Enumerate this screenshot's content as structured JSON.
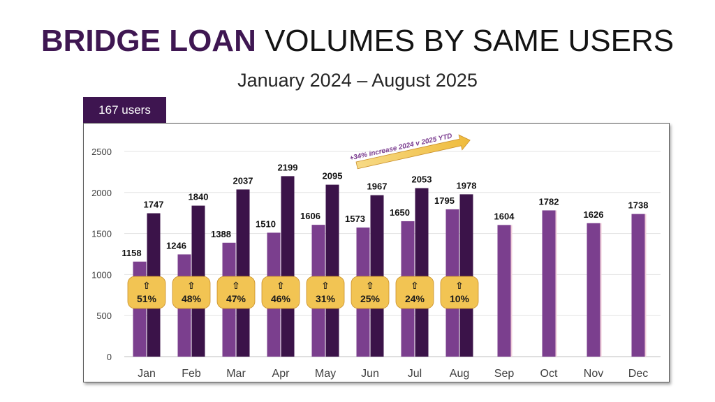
{
  "header": {
    "title_bold": "BRIDGE LOAN",
    "title_rest": " VOLUMES BY SAME USERS",
    "subtitle": "January 2024 – August 2025"
  },
  "badge": {
    "users": "167 users"
  },
  "chart_data": {
    "type": "bar",
    "categories": [
      "Jan",
      "Feb",
      "Mar",
      "Apr",
      "May",
      "Jun",
      "Jul",
      "Aug",
      "Sep",
      "Oct",
      "Nov",
      "Dec"
    ],
    "series": [
      {
        "values": [
          1158,
          1246,
          1388,
          1510,
          1606,
          1573,
          1650,
          1795,
          1604,
          1782,
          1626,
          1738
        ],
        "color": "#7b3f8e"
      },
      {
        "values": [
          1747,
          1840,
          2037,
          2199,
          2095,
          1967,
          2053,
          1978,
          null,
          null,
          null,
          null
        ],
        "color": "#3b1349"
      }
    ],
    "y_ticks": [
      0,
      500,
      1000,
      1500,
      2000,
      2500
    ],
    "ylim": [
      0,
      2500
    ],
    "grid": true,
    "growth_badges": {
      "arrow_glyph": "⇧",
      "labels": [
        "51%",
        "48%",
        "47%",
        "46%",
        "31%",
        "25%",
        "24%",
        "10%"
      ],
      "color": "#f2c453"
    },
    "annotation": {
      "text": "+34% increase 2024 v 2025 YTD",
      "color": "#f2c453"
    }
  }
}
